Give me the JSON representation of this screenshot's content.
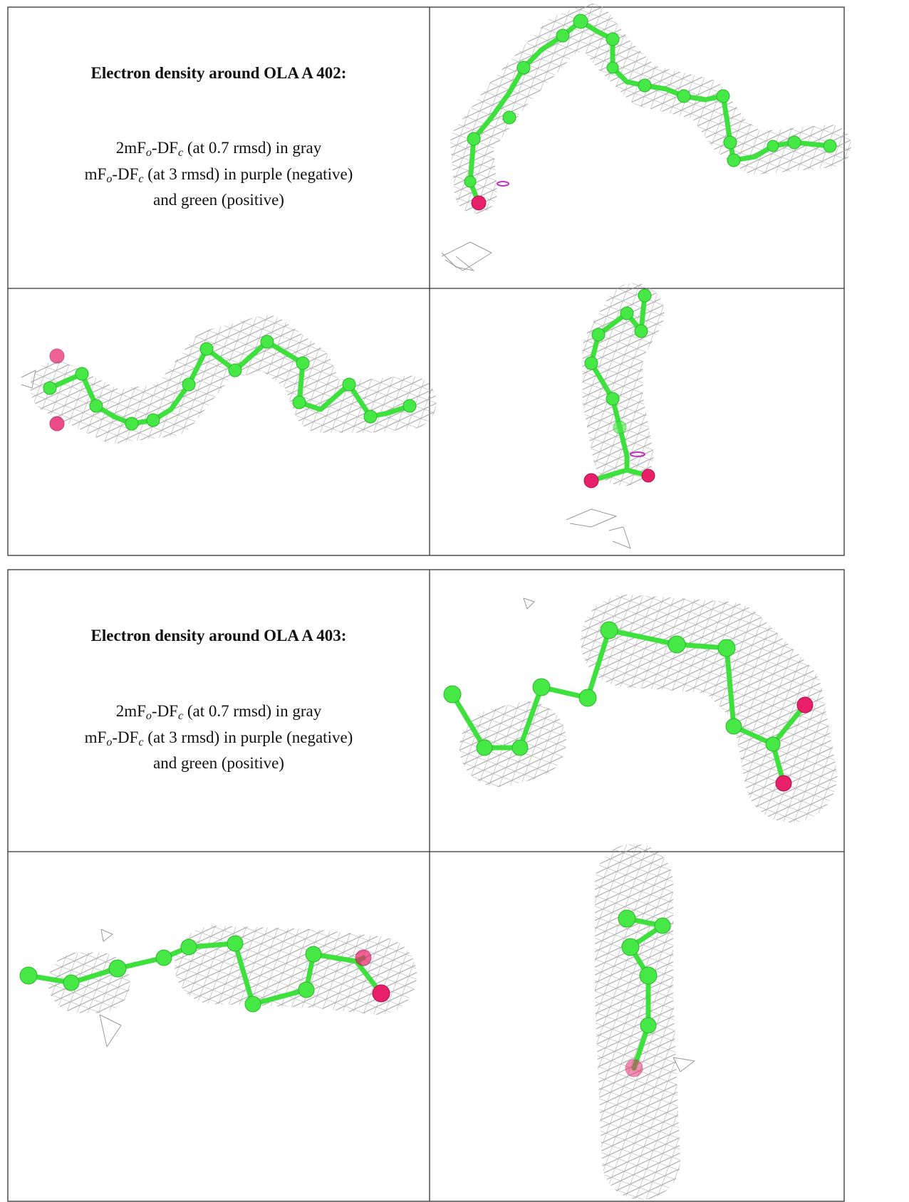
{
  "panels": [
    {
      "title": "Electron density around OLA A 402:",
      "lines": [
        [
          {
            "t": "2mF"
          },
          {
            "sub": "o"
          },
          {
            "t": "-DF"
          },
          {
            "sub": "c"
          },
          {
            "t": " (at 0.7 rmsd) in gray"
          }
        ],
        [
          {
            "t": "mF"
          },
          {
            "sub": "o"
          },
          {
            "t": "-DF"
          },
          {
            "sub": "c"
          },
          {
            "t": " (at 3 rmsd) in purple (negative)"
          }
        ],
        [
          {
            "t": "and green (positive)"
          }
        ]
      ]
    },
    {
      "title": "Electron density around OLA A 403:",
      "lines": [
        [
          {
            "t": "2mF"
          },
          {
            "sub": "o"
          },
          {
            "t": "-DF"
          },
          {
            "sub": "c"
          },
          {
            "t": " (at 0.7 rmsd) in gray"
          }
        ],
        [
          {
            "t": "mF"
          },
          {
            "sub": "o"
          },
          {
            "t": "-DF"
          },
          {
            "sub": "c"
          },
          {
            "t": " (at 3 rmsd) in purple (negative)"
          }
        ],
        [
          {
            "t": "and green (positive)"
          }
        ]
      ]
    }
  ]
}
